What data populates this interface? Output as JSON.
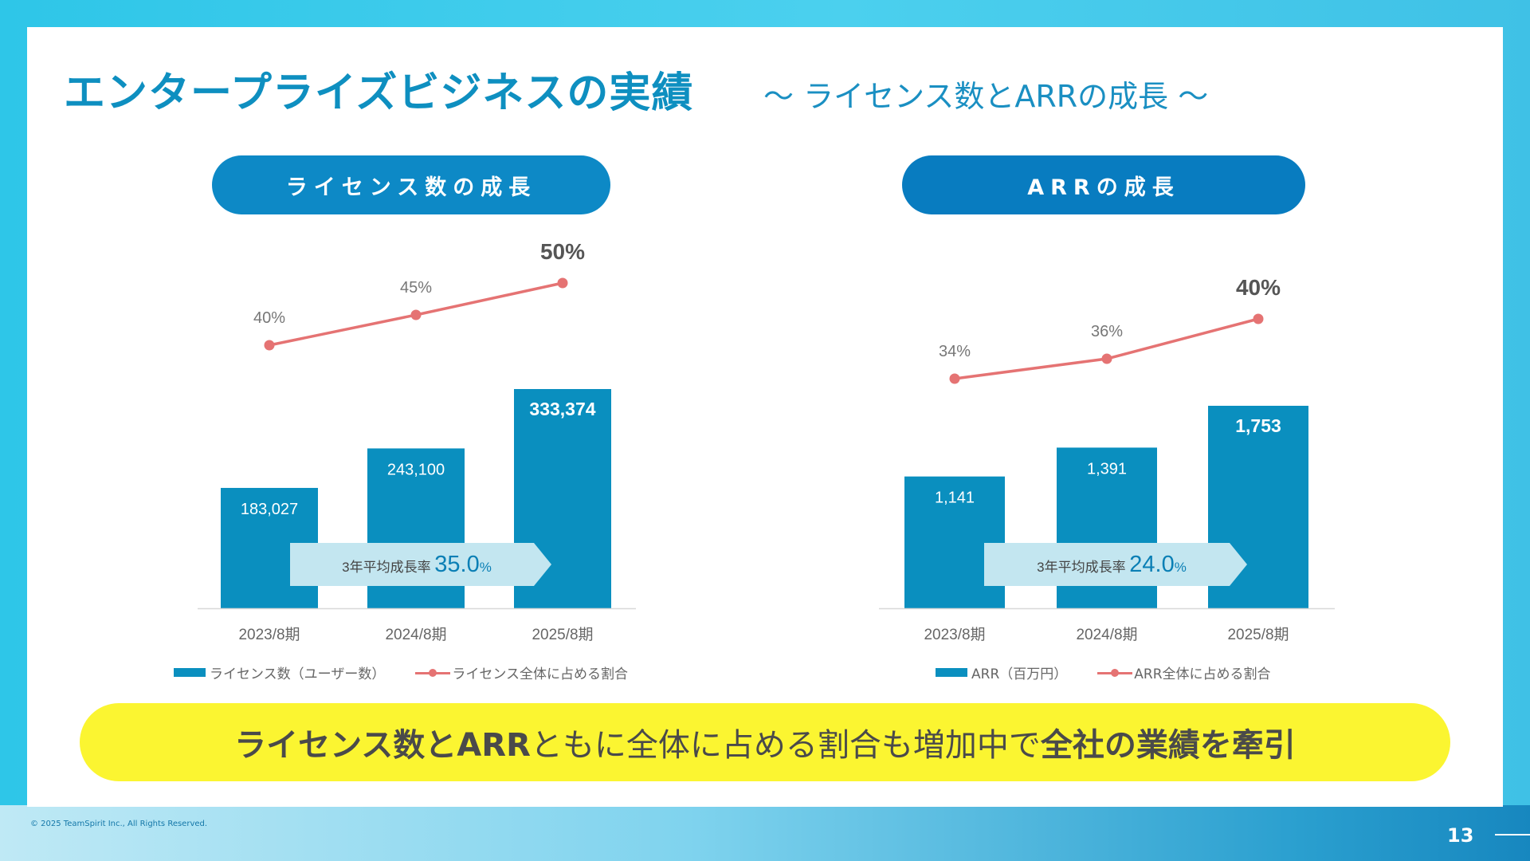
{
  "header": {
    "title": "エンタープライズビジネスの実績",
    "subtitle": "～ ライセンス数とARRの成長 ～"
  },
  "banner": {
    "part1": "ライセンス数とARR",
    "part2": "ともに全体に占める割合も増加中で",
    "part3": "全社の業績を牽引"
  },
  "footer": {
    "copyright": "© 2025 TeamSpirit Inc., All Rights Reserved.",
    "page_number": "13"
  },
  "colors": {
    "bar": "#0a8fbf",
    "line": "#e57373",
    "arrow": "#c3e6f0",
    "banner": "#fbf531"
  },
  "chart_data": [
    {
      "type": "bar",
      "title": "ライセンス数の成長",
      "categories": [
        "2023/8期",
        "2024/8期",
        "2025/8期"
      ],
      "series": [
        {
          "name": "ライセンス数（ユーザー数）",
          "type": "bar",
          "values": [
            183027,
            243100,
            333374
          ],
          "labels": [
            "183,027",
            "243,100",
            "333,374"
          ]
        },
        {
          "name": "ライセンス全体に占める割合",
          "type": "line",
          "values": [
            40,
            45,
            50
          ],
          "labels": [
            "40%",
            "45%",
            "50%"
          ]
        }
      ],
      "annotation": {
        "label": "3年平均成長率",
        "value": "35.0",
        "unit": "%"
      }
    },
    {
      "type": "bar",
      "title": "ARRの成長",
      "categories": [
        "2023/8期",
        "2024/8期",
        "2025/8期"
      ],
      "series": [
        {
          "name": "ARR（百万円）",
          "type": "bar",
          "values": [
            1141,
            1391,
            1753
          ],
          "labels": [
            "1,141",
            "1,391",
            "1,753"
          ]
        },
        {
          "name": "ARR全体に占める割合",
          "type": "line",
          "values": [
            34,
            36,
            40
          ],
          "labels": [
            "34%",
            "36%",
            "40%"
          ]
        }
      ],
      "annotation": {
        "label": "3年平均成長率",
        "value": "24.0",
        "unit": "%"
      }
    }
  ]
}
